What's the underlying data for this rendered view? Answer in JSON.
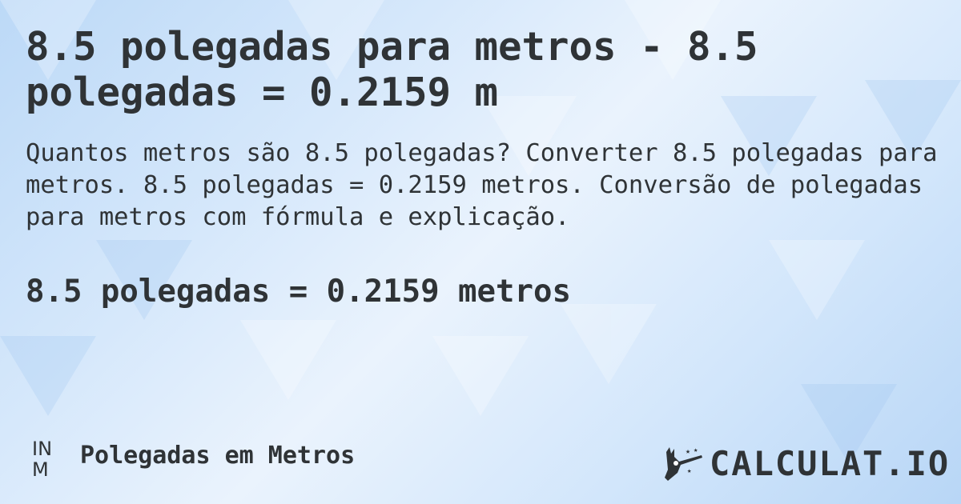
{
  "title": "8.5 polegadas para metros - 8.5 polegadas = 0.2159 m",
  "description": "Quantos metros são 8.5 polegadas? Converter 8.5 polegadas para metros. 8.5 polegadas = 0.2159 metros. Conversão de polegadas para metros com fórmula e explicação.",
  "result": "8.5 polegadas = 0.2159 metros",
  "footer": {
    "unit_icon_top": "IN",
    "unit_icon_bottom": "M",
    "label": "Polegadas em Metros"
  },
  "logo": {
    "text": "CALCULAT.IO",
    "icon": "magic-wand-hand-icon"
  },
  "colors": {
    "text": "#2f3336",
    "background": "#d6e8fb"
  }
}
